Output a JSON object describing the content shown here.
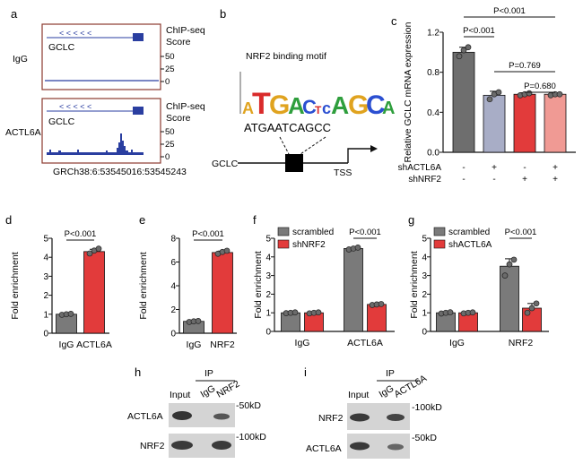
{
  "figure": {
    "panels": {
      "a": "a",
      "b": "b",
      "c": "c",
      "d": "d",
      "e": "e",
      "f": "f",
      "g": "g",
      "h": "h",
      "i": "i"
    },
    "panel_a": {
      "gene": "GCLC",
      "track_label_line1": "ChIP-seq",
      "track_label_line2": "Score",
      "row1": "IgG",
      "row2": "ACTL6A",
      "ticks": [
        "50",
        "25",
        "0"
      ],
      "coordinates": "GRCh38:6:53545016:53545243",
      "accent_color": "#2a3ea0",
      "frame_color": "#8b3a2e"
    },
    "panel_b": {
      "motif_title": "NRF2 binding motif",
      "motif_letters": "ATGACTCAGCA",
      "sequence": "ATGAATCAGCC",
      "gene": "GCLC",
      "tss": "TSS"
    },
    "panel_h": {
      "ip_label": "IP",
      "lanes": [
        "Input",
        "IgG",
        "NRF2"
      ],
      "rows": [
        "ACTL6A",
        "NRF2"
      ],
      "markers": [
        "-50kD",
        "-100kD"
      ]
    },
    "panel_i": {
      "ip_label": "IP",
      "lanes": [
        "Input",
        "IgG",
        "ACTL6A"
      ],
      "rows": [
        "NRF2",
        "ACTL6A"
      ],
      "markers": [
        "-100kD",
        "-50kD"
      ]
    }
  },
  "chart_data": [
    {
      "id": "c",
      "type": "bar",
      "ylabel": "Relative GCLC mRNA expression",
      "ylim": [
        0,
        1.2
      ],
      "yticks": [
        "0.0",
        "0.4",
        "0.8",
        "1.2"
      ],
      "row_labels": [
        "shACTL6A",
        "shNRF2"
      ],
      "condition_marks": [
        [
          "-",
          "+",
          "-",
          "+"
        ],
        [
          "-",
          "-",
          "+",
          "+"
        ]
      ],
      "values": [
        1.0,
        0.57,
        0.58,
        0.58
      ],
      "points": [
        [
          0.96,
          1.02,
          1.05
        ],
        [
          0.53,
          0.58,
          0.6
        ],
        [
          0.57,
          0.58,
          0.59
        ],
        [
          0.57,
          0.58,
          0.58
        ]
      ],
      "errors": [
        0.05,
        0.04,
        0.015,
        0.01
      ],
      "colors": [
        "#6e6e6e",
        "#a8adc6",
        "#e23b3b",
        "#f09a94"
      ],
      "annotations": [
        "P<0.001",
        "P<0.001",
        "P=0.769",
        "P=0.680"
      ]
    },
    {
      "id": "d",
      "type": "bar",
      "ylabel": "Fold enrichment",
      "categories": [
        "IgG",
        "ACTL6A"
      ],
      "values": [
        1.0,
        4.3
      ],
      "points": [
        [
          0.97,
          1.0,
          1.02
        ],
        [
          4.2,
          4.35,
          4.45
        ]
      ],
      "errors": [
        0.04,
        0.12
      ],
      "colors": [
        "#7a7a7a",
        "#e23b3b"
      ],
      "ylim": [
        0,
        5
      ],
      "yticks": [
        "0",
        "1",
        "2",
        "3",
        "4",
        "5"
      ],
      "annotation": "P<0.001"
    },
    {
      "id": "e",
      "type": "bar",
      "ylabel": "Fold enrichment",
      "categories": [
        "IgG",
        "NRF2"
      ],
      "values": [
        1.0,
        6.8
      ],
      "points": [
        [
          0.95,
          1.0,
          1.03
        ],
        [
          6.7,
          6.85,
          6.95
        ]
      ],
      "errors": [
        0.05,
        0.12
      ],
      "colors": [
        "#7a7a7a",
        "#e23b3b"
      ],
      "ylim": [
        0,
        8
      ],
      "yticks": [
        "0",
        "2",
        "4",
        "6",
        "8"
      ],
      "annotation": "P<0.001"
    },
    {
      "id": "f",
      "type": "bar",
      "ylabel": "Fold enrichment",
      "categories": [
        "IgG",
        "ACTL6A"
      ],
      "series": [
        {
          "name": "scrambled",
          "values": [
            1.0,
            4.45
          ],
          "points": [
            [
              0.98,
              1.0,
              1.02
            ],
            [
              4.4,
              4.45,
              4.5
            ]
          ],
          "errors": [
            0.03,
            0.05
          ]
        },
        {
          "name": "shNRF2",
          "values": [
            1.0,
            1.45
          ],
          "points": [
            [
              0.97,
              1.0,
              1.02
            ],
            [
              1.42,
              1.45,
              1.47
            ]
          ],
          "errors": [
            0.03,
            0.03
          ]
        }
      ],
      "colors": [
        "#7a7a7a",
        "#e23b3b"
      ],
      "ylim": [
        0,
        5
      ],
      "yticks": [
        "0",
        "1",
        "2",
        "3",
        "4",
        "5"
      ],
      "annotation": "P<0.001"
    },
    {
      "id": "g",
      "type": "bar",
      "ylabel": "Fold enrichment",
      "categories": [
        "IgG",
        "NRF2"
      ],
      "series": [
        {
          "name": "scrambled",
          "values": [
            1.0,
            3.5
          ],
          "points": [
            [
              0.96,
              1.0,
              1.03
            ],
            [
              3.0,
              3.6,
              3.85
            ]
          ],
          "errors": [
            0.04,
            0.4
          ]
        },
        {
          "name": "shACTL6A",
          "values": [
            1.0,
            1.25
          ],
          "points": [
            [
              0.97,
              1.0,
              1.02
            ],
            [
              1.0,
              1.25,
              1.5
            ]
          ],
          "errors": [
            0.03,
            0.25
          ]
        }
      ],
      "colors": [
        "#7a7a7a",
        "#e23b3b"
      ],
      "ylim": [
        0,
        5
      ],
      "yticks": [
        "0",
        "1",
        "2",
        "3",
        "4",
        "5"
      ],
      "annotation": "P<0.001"
    }
  ]
}
